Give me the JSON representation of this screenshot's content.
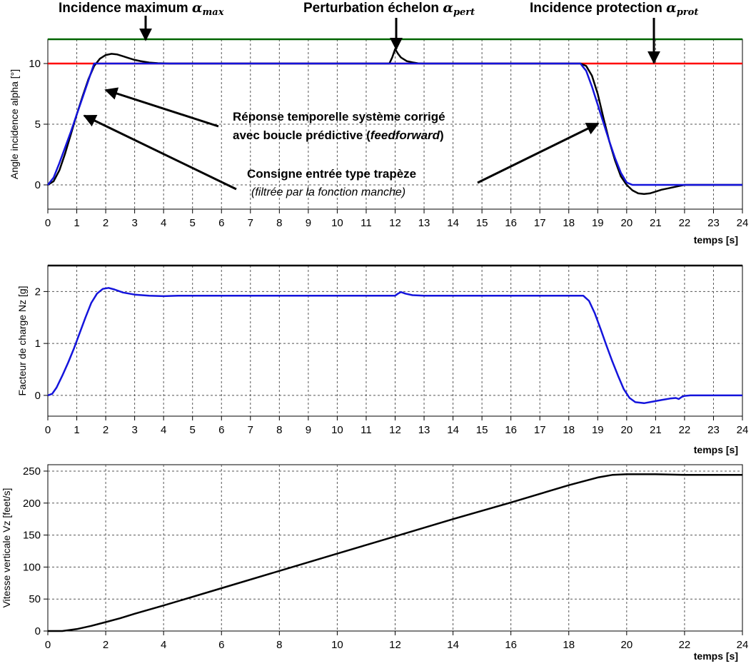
{
  "annotations": {
    "alpha_max": {
      "text": "Incidence maximum ",
      "symbol": "α",
      "sub": "max"
    },
    "alpha_pert": {
      "text": "Perturbation échelon ",
      "symbol": "α",
      "sub": "pert"
    },
    "alpha_prot": {
      "text": "Incidence protection ",
      "symbol": "α",
      "sub": "prot"
    },
    "response_line1": "Réponse temporelle système corrigé",
    "response_line2_a": "avec boucle prédictive (",
    "response_line2_b": "feedforward",
    "response_line2_c": ")",
    "consigne_line1": "Consigne entrée type trapèze",
    "consigne_line2": "(filtrée par la fonction manche)"
  },
  "colors": {
    "response": "#000000",
    "setpoint": "#1414dc",
    "alpha_max_line": "#006400",
    "alpha_prot_line": "#ff0000",
    "grid": "#555555"
  },
  "chart_data": [
    {
      "type": "line",
      "ylabel": "Angle incidence alpha [°]",
      "xlabel": "temps [s]",
      "xlim": [
        0,
        24
      ],
      "ylim": [
        -2,
        12
      ],
      "xticks": [
        0,
        1,
        2,
        3,
        4,
        5,
        6,
        7,
        8,
        9,
        10,
        11,
        12,
        13,
        14,
        15,
        16,
        17,
        18,
        19,
        20,
        21,
        22,
        23,
        24
      ],
      "yticks": [
        0,
        5,
        10
      ],
      "grid": true,
      "hlines": [
        {
          "name": "alpha_max",
          "y": 12,
          "color": "#006400"
        },
        {
          "name": "alpha_prot",
          "y": 10,
          "color": "#ff0000"
        }
      ],
      "series": [
        {
          "color": "#000000",
          "x": [
            0,
            0.2,
            0.4,
            0.6,
            0.8,
            1,
            1.2,
            1.4,
            1.6,
            1.8,
            2,
            2.2,
            2.4,
            2.6,
            2.8,
            3,
            3.2,
            3.5,
            3.8,
            4.2,
            4.6,
            11.8,
            11.9,
            12,
            12.1,
            12.2,
            12.4,
            12.6,
            12.8,
            13,
            14,
            18.4,
            18.6,
            18.8,
            19,
            19.2,
            19.4,
            19.6,
            19.8,
            20,
            20.2,
            20.4,
            20.6,
            20.8,
            21,
            21.2,
            21.5,
            21.8,
            22,
            22.5,
            24
          ],
          "y": [
            0,
            0.3,
            1.2,
            2.6,
            4.2,
            5.8,
            7.3,
            8.7,
            9.8,
            10.4,
            10.7,
            10.8,
            10.75,
            10.6,
            10.45,
            10.3,
            10.2,
            10.08,
            10.03,
            10,
            10,
            10,
            10.5,
            11.2,
            10.8,
            10.5,
            10.2,
            10.1,
            10.02,
            10,
            10,
            10,
            9.8,
            9,
            7.5,
            5.5,
            3.6,
            2,
            0.7,
            0,
            -0.45,
            -0.7,
            -0.75,
            -0.7,
            -0.55,
            -0.4,
            -0.25,
            -0.1,
            0,
            0,
            0
          ]
        },
        {
          "color": "#1414dc",
          "x": [
            0,
            0.2,
            0.4,
            0.6,
            0.8,
            1,
            1.2,
            1.4,
            1.6,
            2,
            4,
            12,
            18.4,
            18.6,
            18.8,
            19,
            19.2,
            19.4,
            19.6,
            19.8,
            20,
            20.2,
            24
          ],
          "y": [
            0,
            0.6,
            1.8,
            3.1,
            4.4,
            5.8,
            7.2,
            8.6,
            10,
            10,
            10,
            10,
            10,
            9.4,
            8.1,
            6.6,
            5.1,
            3.6,
            2.2,
            1,
            0.2,
            0,
            0
          ]
        }
      ]
    },
    {
      "type": "line",
      "ylabel": "Facteur de charge Nz [g]",
      "xlabel": "temps [s]",
      "xlim": [
        0,
        24
      ],
      "ylim": [
        -0.4,
        2.5
      ],
      "xticks": [
        0,
        1,
        2,
        3,
        4,
        5,
        6,
        7,
        8,
        9,
        10,
        11,
        12,
        13,
        14,
        15,
        16,
        17,
        18,
        19,
        20,
        21,
        22,
        23,
        24
      ],
      "yticks": [
        0,
        1,
        2
      ],
      "grid": true,
      "hlines": [
        {
          "name": "nz_limit",
          "y": 2.5,
          "color": "#000000"
        }
      ],
      "series": [
        {
          "color": "#1414dc",
          "x": [
            0,
            0.15,
            0.3,
            0.5,
            0.7,
            0.9,
            1.1,
            1.3,
            1.5,
            1.7,
            1.9,
            2.1,
            2.3,
            2.6,
            3,
            3.5,
            4,
            4.5,
            12,
            12.1,
            12.2,
            12.35,
            12.6,
            13,
            18.5,
            18.7,
            18.9,
            19.1,
            19.3,
            19.5,
            19.7,
            19.9,
            20.1,
            20.3,
            20.6,
            20.9,
            21.2,
            21.5,
            21.7,
            21.8,
            21.9,
            22,
            22.2,
            23,
            24
          ],
          "y": [
            0,
            0.03,
            0.15,
            0.38,
            0.63,
            0.9,
            1.2,
            1.5,
            1.78,
            1.96,
            2.05,
            2.07,
            2.04,
            1.98,
            1.94,
            1.92,
            1.91,
            1.92,
            1.92,
            1.96,
            1.99,
            1.96,
            1.93,
            1.92,
            1.92,
            1.82,
            1.58,
            1.28,
            0.96,
            0.66,
            0.38,
            0.12,
            -0.05,
            -0.13,
            -0.15,
            -0.12,
            -0.09,
            -0.06,
            -0.05,
            -0.07,
            -0.03,
            -0.01,
            0,
            0,
            0
          ]
        }
      ]
    },
    {
      "type": "line",
      "ylabel": "Vitesse verticale Vz [feet/s]",
      "xlabel": "temps [s]",
      "xlim": [
        0,
        24
      ],
      "ylim": [
        0,
        260
      ],
      "xticks": [
        0,
        2,
        4,
        6,
        8,
        10,
        12,
        14,
        16,
        18,
        20,
        22,
        24
      ],
      "yticks": [
        0,
        50,
        100,
        150,
        200,
        250
      ],
      "grid": true,
      "series": [
        {
          "color": "#000000",
          "x": [
            0,
            0.5,
            1,
            1.5,
            2,
            2.5,
            3,
            4,
            6,
            8,
            10,
            12,
            14,
            16,
            18,
            18.5,
            19,
            19.5,
            20,
            21,
            22,
            24
          ],
          "y": [
            0,
            0,
            3,
            8,
            14,
            20,
            27,
            40,
            67,
            94,
            121,
            148,
            175,
            201,
            228,
            234,
            240,
            244,
            245,
            245,
            244,
            244
          ]
        }
      ]
    }
  ]
}
